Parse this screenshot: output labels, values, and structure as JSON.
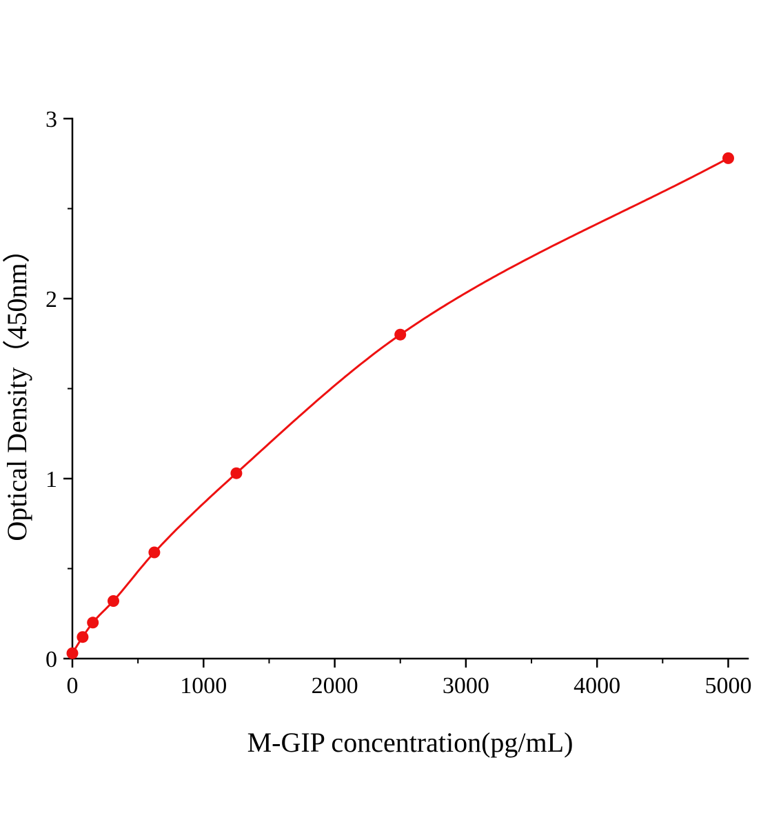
{
  "figure": {
    "background": "#ffffff"
  },
  "chart_data": {
    "type": "scatter",
    "title": "",
    "xlabel": "M-GIP concentration(pg/mL)",
    "ylabel": "Optical Density（450nm）",
    "series": [
      {
        "x": [
          0,
          78.1,
          156.2,
          312.5,
          625,
          1250,
          2500,
          5000
        ],
        "y": [
          0.03,
          0.12,
          0.2,
          0.32,
          0.59,
          1.03,
          1.8,
          2.78
        ],
        "color": "#ee1111",
        "marker": "circle",
        "line": "smooth"
      }
    ],
    "xlim": [
      0,
      5150
    ],
    "ylim": [
      0,
      3
    ],
    "x_major_ticks": [
      0,
      1000,
      2000,
      3000,
      4000,
      5000
    ],
    "x_minor_step": 500,
    "y_major_ticks": [
      0,
      1,
      2,
      3
    ],
    "y_minor_step": 0.5,
    "grid": false,
    "legend": false,
    "axis_color": "#000000"
  }
}
